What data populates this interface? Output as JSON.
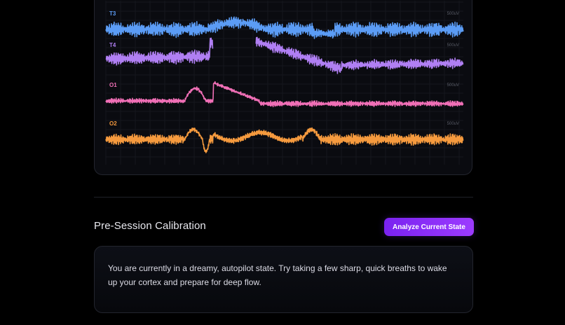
{
  "eeg": {
    "channels": [
      {
        "name": "T3",
        "unit": "500uV",
        "color": "#5b9cf5"
      },
      {
        "name": "T4",
        "unit": "500uV",
        "color": "#b07ff3"
      },
      {
        "name": "O1",
        "unit": "500uV",
        "color": "#f06fb6"
      },
      {
        "name": "O2",
        "unit": "500uV",
        "color": "#f59a3e"
      }
    ]
  },
  "calibration": {
    "title": "Pre-Session Calibration",
    "button_label": "Analyze Current State",
    "message": "You are currently in a dreamy, autopilot state. Try taking a few sharp, quick breaths to wake up your cortex and prepare for deep flow."
  }
}
